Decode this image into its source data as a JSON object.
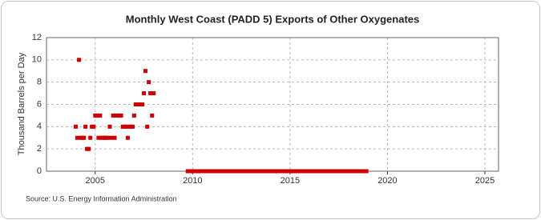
{
  "chart_data": {
    "type": "scatter",
    "title": "Monthly West Coast (PADD 5) Exports of Other Oxygenates",
    "y_label": "Thousand Barrels per Day",
    "source": "Source: U.S. Energy Information Administration",
    "color": "#cc0000",
    "grid": true,
    "xlim": [
      2002.5,
      2025.7
    ],
    "ylim": [
      0,
      12
    ],
    "xticks": [
      2005,
      2010,
      2015,
      2020,
      2025
    ],
    "yticks": [
      0,
      2,
      4,
      6,
      8,
      10,
      12
    ],
    "x": [
      2004.0,
      2004.08,
      2004.17,
      2004.25,
      2004.33,
      2004.42,
      2004.5,
      2004.58,
      2004.67,
      2004.75,
      2004.83,
      2004.92,
      2005.0,
      2005.08,
      2005.17,
      2005.25,
      2005.33,
      2005.42,
      2005.5,
      2005.58,
      2005.67,
      2005.75,
      2005.83,
      2005.92,
      2006.0,
      2006.08,
      2006.17,
      2006.25,
      2006.33,
      2006.42,
      2006.5,
      2006.58,
      2006.67,
      2006.75,
      2006.83,
      2006.92,
      2007.0,
      2007.08,
      2007.17,
      2007.25,
      2007.33,
      2007.42,
      2007.5,
      2007.58,
      2007.67,
      2007.75,
      2007.83,
      2007.92,
      2008.0,
      2009.75,
      2009.92,
      2010.08,
      2010.25,
      2010.42,
      2010.58,
      2010.75,
      2010.92,
      2011.08,
      2011.25,
      2011.42,
      2011.58,
      2011.75,
      2011.92,
      2012.08,
      2012.25,
      2012.42,
      2012.58,
      2012.75,
      2012.92,
      2013.08,
      2013.25,
      2013.42,
      2013.58,
      2013.75,
      2013.92,
      2014.08,
      2014.25,
      2014.42,
      2014.58,
      2014.75,
      2014.92,
      2015.08,
      2015.25,
      2015.42,
      2015.58,
      2015.75,
      2015.92,
      2016.08,
      2016.25,
      2016.42,
      2016.58,
      2016.75,
      2016.92,
      2017.08,
      2017.25,
      2017.42,
      2017.58,
      2017.75,
      2017.92,
      2018.08,
      2018.25,
      2018.42,
      2018.58,
      2018.75,
      2018.92
    ],
    "values": [
      4,
      3,
      10,
      3,
      3,
      3,
      4,
      2,
      2,
      3,
      4,
      4,
      5,
      5,
      3,
      5,
      3,
      3,
      3,
      3,
      3,
      4,
      3,
      5,
      3,
      5,
      5,
      5,
      5,
      4,
      4,
      4,
      3,
      4,
      4,
      4,
      5,
      6,
      6,
      6,
      6,
      6,
      7,
      9,
      4,
      8,
      7,
      5,
      7,
      0,
      0,
      0,
      0,
      0,
      0,
      0,
      0,
      0,
      0,
      0,
      0,
      0,
      0,
      0,
      0,
      0,
      0,
      0,
      0,
      0,
      0,
      0,
      0,
      0,
      0,
      0,
      0,
      0,
      0,
      0,
      0,
      0,
      0,
      0,
      0,
      0,
      0,
      0,
      0,
      0,
      0,
      0,
      0,
      0,
      0,
      0,
      0,
      0,
      0,
      0,
      0,
      0,
      0,
      0,
      0
    ]
  }
}
